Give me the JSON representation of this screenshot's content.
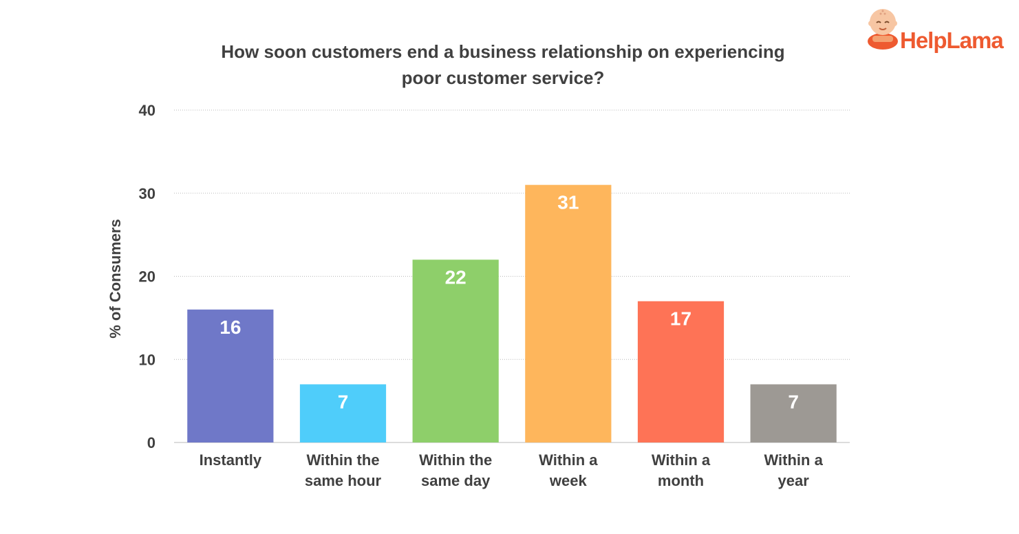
{
  "logo": {
    "text_help": "Help",
    "text_lama": "Lama",
    "icon": "monk-mascot-icon",
    "color": "#ee5a30"
  },
  "chart_data": {
    "type": "bar",
    "title": [
      "How soon customers end a business relationship on experiencing",
      "poor customer service?"
    ],
    "xlabel": "",
    "ylabel": "% of Consumers",
    "ylim": [
      0,
      40
    ],
    "yticks": [
      0,
      10,
      20,
      30,
      40
    ],
    "grid": true,
    "categories": [
      [
        "Instantly"
      ],
      [
        "Within the",
        "same hour"
      ],
      [
        "Within the",
        "same day"
      ],
      [
        "Within a",
        "week"
      ],
      [
        "Within a",
        "month"
      ],
      [
        "Within a",
        "year"
      ]
    ],
    "values": [
      16,
      7,
      22,
      31,
      17,
      7
    ],
    "colors": [
      "#6f78c8",
      "#4fcdfa",
      "#8ecf6a",
      "#feb65c",
      "#fe7356",
      "#9d9994"
    ]
  }
}
